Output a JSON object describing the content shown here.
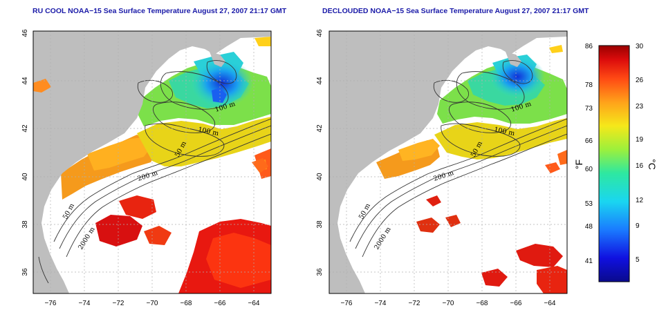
{
  "maps": [
    {
      "title": "RU COOL NOAA−15 Sea Surface Temperature August 27, 2007 21:17 GMT"
    },
    {
      "title": "DECLOUDED NOAA−15 Sea Surface Temperature August 27, 2007 21:17 GMT"
    }
  ],
  "axes": {
    "lon_ticks": [
      "−76",
      "−74",
      "−72",
      "−70",
      "−68",
      "−66",
      "−64"
    ],
    "lat_ticks": [
      "36",
      "38",
      "40",
      "42",
      "44",
      "46"
    ],
    "lon_range": [
      -77,
      -63
    ],
    "lat_range": [
      35,
      46
    ]
  },
  "contour_labels": [
    "100 m",
    "100 m",
    "50 m",
    "200 m",
    "50 m",
    "2000 m"
  ],
  "colorbar": {
    "fahrenheit_ticks": [
      "86",
      "78",
      "73",
      "66",
      "60",
      "53",
      "48",
      "41"
    ],
    "celsius_ticks": [
      "30",
      "26",
      "23",
      "19",
      "16",
      "12",
      "9",
      "5"
    ],
    "fahrenheit_unit": "°F",
    "celsius_unit": "°C",
    "range_celsius": [
      2,
      30
    ]
  },
  "colors": {
    "land": "#bebebe",
    "background": "#ffffff",
    "title": "#1a1aa8",
    "grid": "#b0b0b0"
  }
}
